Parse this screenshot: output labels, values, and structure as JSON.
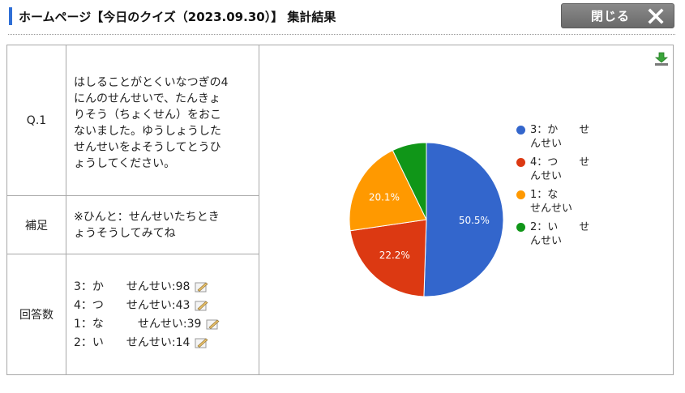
{
  "header": {
    "title": "ホームページ【今日のクイズ（2023.09.30）】 集計結果",
    "close_label": "閉じる"
  },
  "question": {
    "label": "Q.1",
    "text_lines": [
      "はしることがとくいなつぎの4",
      "にんのせんせいで、たんきょ",
      "りそう（ちょくせん）をおこ",
      "ないました。ゆうしょうした",
      "せんせいをよそうしてとうひ",
      "ょうしてください。"
    ]
  },
  "hint": {
    "label": "補足",
    "text_lines": [
      "※ひんと：せんせいたちとき",
      "ょうそうしてみてね"
    ]
  },
  "answers": {
    "label": "回答数",
    "items": [
      {
        "text": "3：か　　せんせい:98"
      },
      {
        "text": "4：つ　　せんせい:43"
      },
      {
        "text": "1：な　　　せんせい:39"
      },
      {
        "text": "2：い　　せんせい:14"
      }
    ]
  },
  "chart_data": {
    "type": "pie",
    "slices": [
      {
        "label": "3：か　　せんせい",
        "value": 98,
        "percent_label": "50.5%",
        "color": "#3366cc"
      },
      {
        "label": "4：つ　　せんせい",
        "value": 43,
        "percent_label": "22.2%",
        "color": "#dc3912"
      },
      {
        "label": "1：な　　せんせい",
        "value": 39,
        "percent_label": "20.1%",
        "color": "#ff9900"
      },
      {
        "label": "2：い　　せんせい",
        "value": 14,
        "percent_label": "",
        "color": "#109618"
      }
    ],
    "legend": {
      "position": "right",
      "lines": [
        [
          "3：か　　せ",
          "んせい"
        ],
        [
          "4：つ　　せ",
          "んせい"
        ],
        [
          "1：な",
          "せんせい"
        ],
        [
          "2：い　　せ",
          "んせい"
        ]
      ]
    }
  }
}
